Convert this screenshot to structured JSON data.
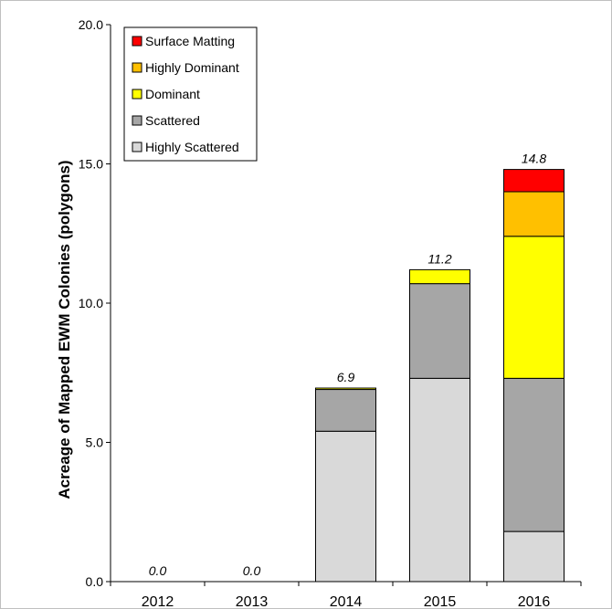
{
  "chart_data": {
    "type": "bar",
    "stacked": true,
    "title": "",
    "xlabel": "",
    "ylabel": "Acreage of Mapped EWM Colonies (polygons)",
    "ylim": [
      0,
      20
    ],
    "yticks": [
      "0.0",
      "5.0",
      "10.0",
      "15.0",
      "20.0"
    ],
    "categories": [
      "2012",
      "2013",
      "2014",
      "2015",
      "2016"
    ],
    "series": [
      {
        "name": "Highly Scattered",
        "color": "#d9d9d9",
        "values": [
          0,
          0,
          5.4,
          7.3,
          1.8
        ]
      },
      {
        "name": "Scattered",
        "color": "#a6a6a6",
        "values": [
          0,
          0,
          1.5,
          3.4,
          5.5
        ]
      },
      {
        "name": "Dominant",
        "color": "#ffff00",
        "values": [
          0,
          0,
          0.05,
          0.5,
          5.1
        ]
      },
      {
        "name": "Highly Dominant",
        "color": "#ffc000",
        "values": [
          0,
          0,
          0,
          0,
          1.6
        ]
      },
      {
        "name": "Surface Matting",
        "color": "#ff0000",
        "values": [
          0,
          0,
          0,
          0,
          0.8
        ]
      }
    ],
    "totals": [
      "0.0",
      "0.0",
      "6.9",
      "11.2",
      "14.8"
    ],
    "legend_order": [
      "Surface Matting",
      "Highly Dominant",
      "Dominant",
      "Scattered",
      "Highly Scattered"
    ],
    "legend_position": "top-left",
    "grid": false
  }
}
